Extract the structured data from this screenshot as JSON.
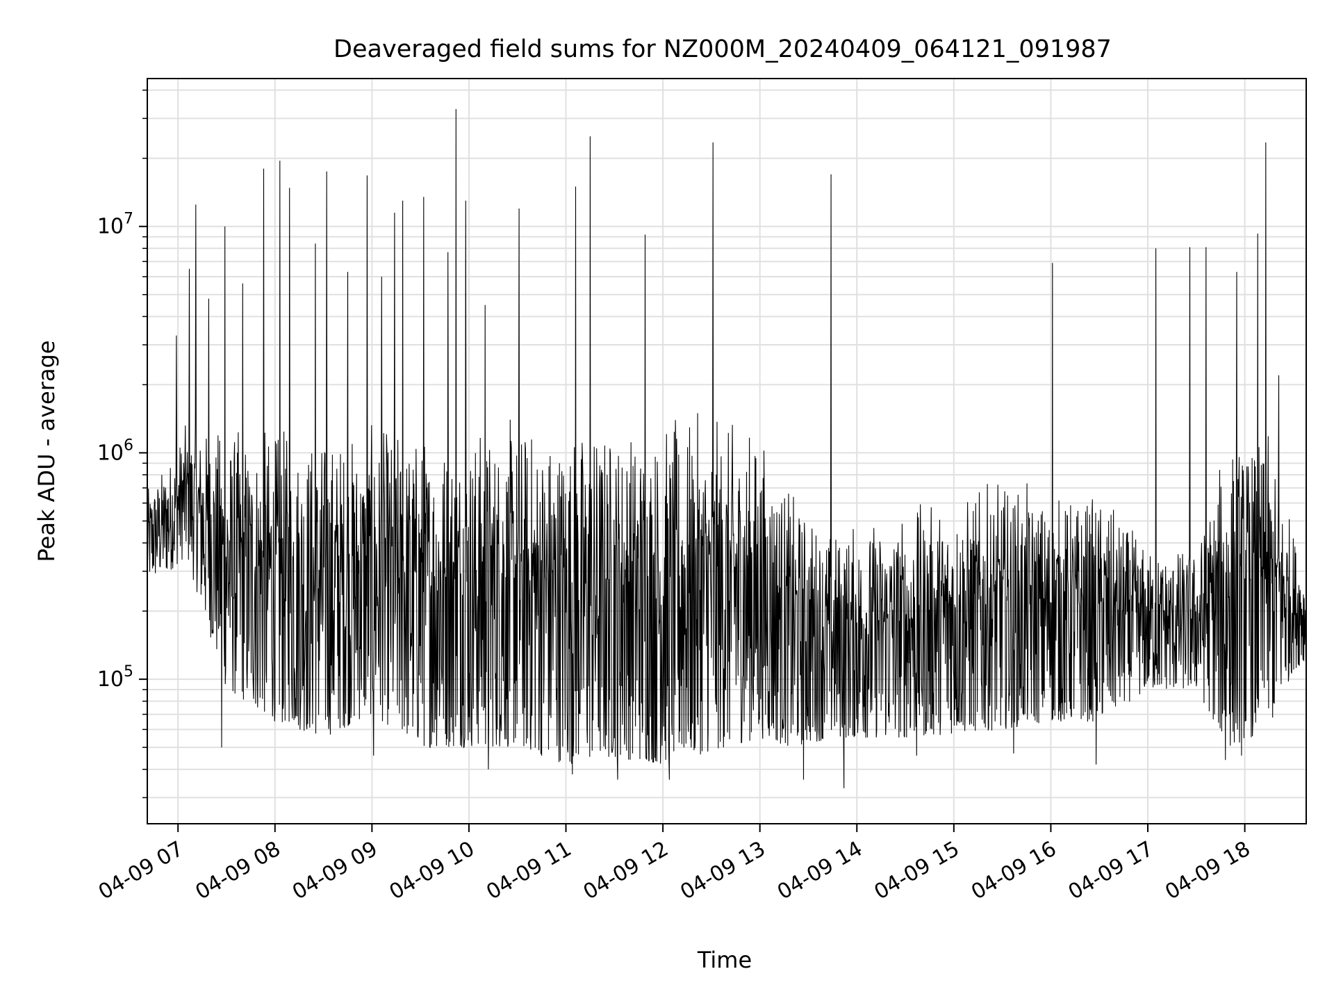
{
  "chart_data": {
    "type": "line",
    "title": "Deaveraged field sums for NZ000M_20240409_064121_091987",
    "xlabel": "Time",
    "ylabel": "Peak ADU - average",
    "yscale": "log",
    "grid": true,
    "line_color": "#000000",
    "grid_color": "#e0e0e0",
    "xlim": [
      "2024-04-09 06:41",
      "2024-04-09 18:38"
    ],
    "ylim": [
      23000,
      45000000
    ],
    "x_ticks": [
      {
        "t": "2024-04-09 07:00",
        "label": "04-09 07"
      },
      {
        "t": "2024-04-09 08:00",
        "label": "04-09 08"
      },
      {
        "t": "2024-04-09 09:00",
        "label": "04-09 09"
      },
      {
        "t": "2024-04-09 10:00",
        "label": "04-09 10"
      },
      {
        "t": "2024-04-09 11:00",
        "label": "04-09 11"
      },
      {
        "t": "2024-04-09 12:00",
        "label": "04-09 12"
      },
      {
        "t": "2024-04-09 13:00",
        "label": "04-09 13"
      },
      {
        "t": "2024-04-09 14:00",
        "label": "04-09 14"
      },
      {
        "t": "2024-04-09 15:00",
        "label": "04-09 15"
      },
      {
        "t": "2024-04-09 16:00",
        "label": "04-09 16"
      },
      {
        "t": "2024-04-09 17:00",
        "label": "04-09 17"
      },
      {
        "t": "2024-04-09 18:00",
        "label": "04-09 18"
      }
    ],
    "y_ticks": [
      {
        "value": 100000,
        "base": "10",
        "exp": "5"
      },
      {
        "value": 1000000,
        "base": "10",
        "exp": "6"
      },
      {
        "value": 10000000,
        "base": "10",
        "exp": "7"
      }
    ],
    "series_profile": [
      {
        "t": "2024-04-09 06:41",
        "low": 270000,
        "high": 700000
      },
      {
        "t": "2024-04-09 06:55",
        "low": 300000,
        "high": 1000000
      },
      {
        "t": "2024-04-09 07:05",
        "low": 350000,
        "high": 1400000
      },
      {
        "t": "2024-04-09 07:30",
        "low": 90000,
        "high": 1400000
      },
      {
        "t": "2024-04-09 08:00",
        "low": 65000,
        "high": 1400000
      },
      {
        "t": "2024-04-09 08:30",
        "low": 55000,
        "high": 1400000
      },
      {
        "t": "2024-04-09 09:00",
        "low": 70000,
        "high": 1400000
      },
      {
        "t": "2024-04-09 09:30",
        "low": 50000,
        "high": 1450000
      },
      {
        "t": "2024-04-09 10:00",
        "low": 50000,
        "high": 1500000
      },
      {
        "t": "2024-04-09 10:30",
        "low": 50000,
        "high": 1550000
      },
      {
        "t": "2024-04-09 11:00",
        "low": 42000,
        "high": 1550000
      },
      {
        "t": "2024-04-09 11:30",
        "low": 45000,
        "high": 1550000
      },
      {
        "t": "2024-04-09 12:00",
        "low": 42000,
        "high": 1550000
      },
      {
        "t": "2024-04-09 12:30",
        "low": 48000,
        "high": 1550000
      },
      {
        "t": "2024-04-09 13:00",
        "low": 55000,
        "high": 1400000
      },
      {
        "t": "2024-04-09 13:20",
        "low": 50000,
        "high": 700000
      },
      {
        "t": "2024-04-09 13:45",
        "low": 55000,
        "high": 500000
      },
      {
        "t": "2024-04-09 14:30",
        "low": 55000,
        "high": 600000
      },
      {
        "t": "2024-04-09 15:30",
        "low": 60000,
        "high": 800000
      },
      {
        "t": "2024-04-09 16:00",
        "low": 65000,
        "high": 700000
      },
      {
        "t": "2024-04-09 16:30",
        "low": 65000,
        "high": 700000
      },
      {
        "t": "2024-04-09 17:00",
        "low": 90000,
        "high": 400000
      },
      {
        "t": "2024-04-09 17:30",
        "low": 90000,
        "high": 400000
      },
      {
        "t": "2024-04-09 17:50",
        "low": 50000,
        "high": 1300000
      },
      {
        "t": "2024-04-09 18:15",
        "low": 60000,
        "high": 1200000
      },
      {
        "t": "2024-04-09 18:30",
        "low": 110000,
        "high": 500000
      },
      {
        "t": "2024-04-09 18:38",
        "low": 120000,
        "high": 300000
      }
    ],
    "spikes": [
      {
        "t": "2024-04-09 06:59",
        "y": 3300000
      },
      {
        "t": "2024-04-09 07:07",
        "y": 6500000
      },
      {
        "t": "2024-04-09 07:11",
        "y": 12500000
      },
      {
        "t": "2024-04-09 07:19",
        "y": 4800000
      },
      {
        "t": "2024-04-09 07:29",
        "y": 10000000
      },
      {
        "t": "2024-04-09 07:40",
        "y": 5600000
      },
      {
        "t": "2024-04-09 07:53",
        "y": 18000000
      },
      {
        "t": "2024-04-09 08:03",
        "y": 19500000
      },
      {
        "t": "2024-04-09 08:09",
        "y": 14800000
      },
      {
        "t": "2024-04-09 08:25",
        "y": 8400000
      },
      {
        "t": "2024-04-09 08:32",
        "y": 17500000
      },
      {
        "t": "2024-04-09 08:45",
        "y": 6300000
      },
      {
        "t": "2024-04-09 08:57",
        "y": 16800000
      },
      {
        "t": "2024-04-09 09:06",
        "y": 6000000
      },
      {
        "t": "2024-04-09 09:14",
        "y": 11500000
      },
      {
        "t": "2024-04-09 09:19",
        "y": 13000000
      },
      {
        "t": "2024-04-09 09:32",
        "y": 13500000
      },
      {
        "t": "2024-04-09 09:47",
        "y": 7700000
      },
      {
        "t": "2024-04-09 09:52",
        "y": 33000000
      },
      {
        "t": "2024-04-09 09:58",
        "y": 13000000
      },
      {
        "t": "2024-04-09 10:10",
        "y": 4500000
      },
      {
        "t": "2024-04-09 10:31",
        "y": 12000000
      },
      {
        "t": "2024-04-09 11:06",
        "y": 15000000
      },
      {
        "t": "2024-04-09 11:15",
        "y": 25000000
      },
      {
        "t": "2024-04-09 11:49",
        "y": 9200000
      },
      {
        "t": "2024-04-09 12:31",
        "y": 23500000
      },
      {
        "t": "2024-04-09 13:44",
        "y": 17000000
      },
      {
        "t": "2024-04-09 16:01",
        "y": 6900000
      },
      {
        "t": "2024-04-09 17:05",
        "y": 8000000
      },
      {
        "t": "2024-04-09 17:26",
        "y": 8100000
      },
      {
        "t": "2024-04-09 17:36",
        "y": 8100000
      },
      {
        "t": "2024-04-09 17:55",
        "y": 6300000
      },
      {
        "t": "2024-04-09 18:08",
        "y": 9300000
      },
      {
        "t": "2024-04-09 18:13",
        "y": 23500000
      },
      {
        "t": "2024-04-09 18:21",
        "y": 2200000
      }
    ],
    "dips": [
      {
        "t": "2024-04-09 07:27",
        "y": 50000
      },
      {
        "t": "2024-04-09 09:01",
        "y": 46000
      },
      {
        "t": "2024-04-09 10:12",
        "y": 40000
      },
      {
        "t": "2024-04-09 11:04",
        "y": 38000
      },
      {
        "t": "2024-04-09 11:32",
        "y": 36000
      },
      {
        "t": "2024-04-09 12:04",
        "y": 36000
      },
      {
        "t": "2024-04-09 13:27",
        "y": 36000
      },
      {
        "t": "2024-04-09 13:52",
        "y": 33000
      },
      {
        "t": "2024-04-09 14:37",
        "y": 46000
      },
      {
        "t": "2024-04-09 15:37",
        "y": 47000
      },
      {
        "t": "2024-04-09 16:28",
        "y": 42000
      },
      {
        "t": "2024-04-09 17:48",
        "y": 44000
      },
      {
        "t": "2024-04-09 17:58",
        "y": 46000
      }
    ]
  }
}
